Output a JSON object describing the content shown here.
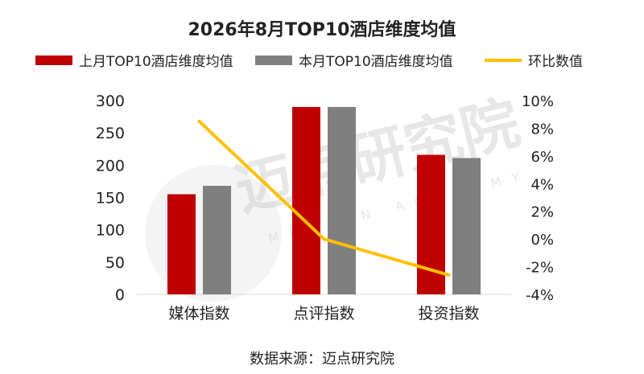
{
  "chart_data": {
    "type": "bar",
    "title": "2026年8月TOP10酒店维度均值",
    "categories": [
      "媒体指数",
      "点评指数",
      "投资指数"
    ],
    "series": [
      {
        "name": "上月TOP10酒店维度均值",
        "type": "bar",
        "axis": "left",
        "color": "#c00000",
        "values": [
          155,
          290,
          216
        ]
      },
      {
        "name": "本月TOP10酒店维度均值",
        "type": "bar",
        "axis": "left",
        "color": "#7f7f7f",
        "values": [
          168,
          290,
          211
        ]
      },
      {
        "name": "环比数值",
        "type": "line",
        "axis": "right",
        "color": "#ffc000",
        "values": [
          8.5,
          0.0,
          -2.6
        ]
      }
    ],
    "yleft": {
      "lim": [
        0,
        300
      ],
      "ticks": [
        "0",
        "50",
        "100",
        "150",
        "200",
        "250",
        "300"
      ]
    },
    "yright": {
      "lim": [
        -4,
        10
      ],
      "ticks": [
        "-4%",
        "-2%",
        "0%",
        "2%",
        "4%",
        "6%",
        "8%",
        "10%"
      ]
    },
    "grid": false,
    "legend": "top"
  },
  "watermark": {
    "cn": "迈点研究院",
    "en": "MEADIN ACADEMY"
  },
  "source": "数据来源：迈点研究院"
}
